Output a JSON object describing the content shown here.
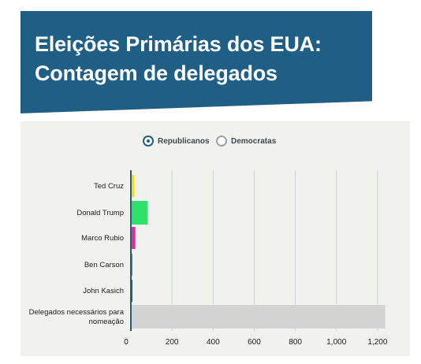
{
  "header": {
    "title_line1": "Eleições Primárias dos EUA:",
    "title_line2": "Contagem de delegados"
  },
  "legend": {
    "options": [
      {
        "label": "Republicanos",
        "selected": true
      },
      {
        "label": "Democratas",
        "selected": false
      }
    ]
  },
  "chart_data": {
    "type": "bar",
    "orientation": "horizontal",
    "categories": [
      "Ted Cruz",
      "Donald Trump",
      "Marco Rubio",
      "Ben Carson",
      "John Kasich",
      "Delegados necessários para nomeação"
    ],
    "category_lines": [
      [
        "Ted Cruz"
      ],
      [
        "Donald Trump"
      ],
      [
        "Marco Rubio"
      ],
      [
        "Ben Carson"
      ],
      [
        "John Kasich"
      ],
      [
        "Delegados necessários para",
        "nomeação"
      ]
    ],
    "values": [
      17,
      82,
      22,
      3,
      6,
      1237
    ],
    "colors": [
      "#f2e200",
      "#2fe06a",
      "#e0309a",
      "#3a8fc8",
      "#9a2a3a",
      "#d3d3d3"
    ],
    "xlim": [
      0,
      1300
    ],
    "xticks": [
      0,
      200,
      400,
      600,
      800,
      1000,
      1200
    ],
    "xtick_labels": [
      "0",
      "200",
      "400",
      "600",
      "800",
      "1,000",
      "1,200"
    ],
    "grid": true
  }
}
